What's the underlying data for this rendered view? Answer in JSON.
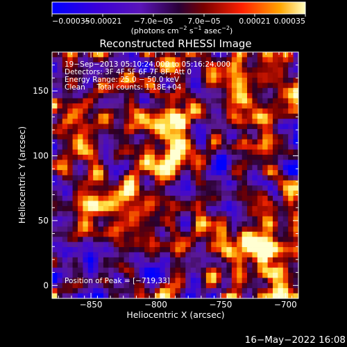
{
  "chart_data": {
    "type": "heatmap",
    "title": "Reconstructed RHESSI Image",
    "xlabel": "Heliocentric X (arcsec)",
    "ylabel": "Heliocentric Y (arcsec)",
    "xlim": [
      -880,
      -690
    ],
    "ylim": [
      -10,
      180
    ],
    "xticks": [
      -850,
      -800,
      -750,
      -700
    ],
    "xtick_labels": [
      "−850",
      "−800",
      "−750",
      "−700"
    ],
    "yticks": [
      0,
      50,
      100,
      150
    ],
    "ytick_labels": [
      "0",
      "50",
      "100",
      "150"
    ],
    "colorbar": {
      "min": -0.00035,
      "max": 0.00035,
      "ticks": [
        -0.00035,
        -0.00021,
        -7e-05,
        7e-05,
        0.00021,
        0.00035
      ],
      "tick_labels": [
        "−0.00035",
        "−0.00021",
        "−7.0e−05",
        "7.0e−05",
        "0.00021",
        "0.00035"
      ],
      "unit_label_main": "(photons cm",
      "unit_exp1": "−2",
      "unit_mid": " s",
      "unit_exp2": "−1",
      "unit_mid2": " asec",
      "unit_exp3": "−2",
      "unit_end": ")",
      "colormap": "rhessi-fire"
    },
    "annotations": [
      "19−Sep−2013 05:10:24.000 to 05:16:24.000",
      "Detectors: 3F 4F 5F 6F 7F 8F, Att 0",
      "Energy Range: 25.0 − 50.0 keV",
      "Clean     Total counts: 1.18E+04"
    ],
    "peak_label": "Position of Peak = [−719,33]",
    "peak": [
      -719,
      33
    ],
    "grid_size": 48,
    "image_description": "Noisy CLEAN residual-style map; alternating bright (orange/yellow) and dark (blue/purple) blobs; brightest near (-719,33) and around (-790,110)"
  },
  "footer": {
    "date": "16−May−2022 16:08"
  }
}
